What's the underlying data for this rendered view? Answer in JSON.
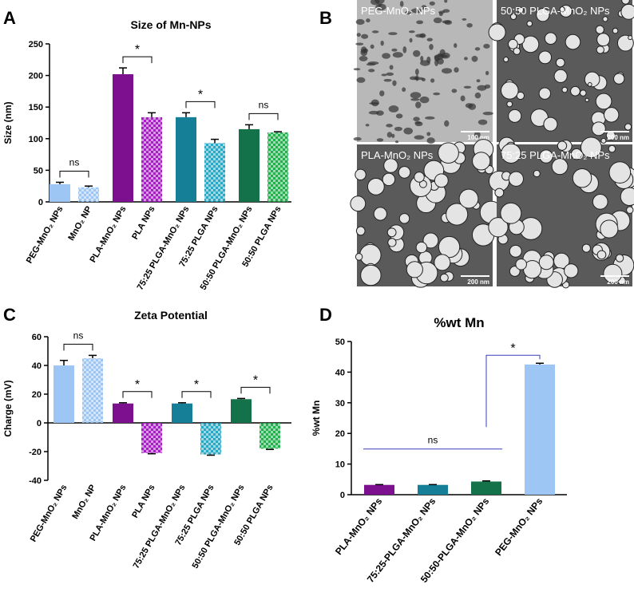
{
  "panel_labels": [
    "A",
    "B",
    "C",
    "D"
  ],
  "micrographs": [
    {
      "label": "PEG-MnO₂ NPs",
      "scale": "100 nm"
    },
    {
      "label": "50:50 PLGA-MnO₂ NPs",
      "scale": "200 nm"
    },
    {
      "label": "PLA-MnO₂ NPs",
      "scale": "200 nm"
    },
    {
      "label": "75:25 PLGA-MnO₂ NPs",
      "scale": "200 nm"
    }
  ],
  "chart_data": [
    {
      "type": "bar",
      "title": "Size of Mn-NPs",
      "ylabel": "Size (nm)",
      "categories": [
        "PEG-MnO₂ NPs",
        "MnO₂ NP",
        "PLA-MnO₂ NPs",
        "PLA NPs",
        "75:25 PLGA-MnO₂ NPs",
        "75:25 PLGA NPs",
        "50:50 PLGA-MnO₂ NPs",
        "50:50 PLGA NPs"
      ],
      "values": [
        28,
        23,
        202,
        134,
        134,
        93,
        115,
        110
      ],
      "errors": [
        3,
        2,
        10,
        7,
        7,
        6,
        7,
        1
      ],
      "colors": [
        "#9ec6f5",
        "#9ec6f5",
        "#7d108f",
        "#a71fc4",
        "#147f96",
        "#28a8c4",
        "#13724a",
        "#23b04f"
      ],
      "patterned": [
        false,
        true,
        false,
        true,
        false,
        true,
        false,
        true
      ],
      "ylim": [
        0,
        250
      ],
      "yticks": [
        0,
        50,
        100,
        150,
        200,
        250
      ],
      "annotations": [
        {
          "text": "ns",
          "between": [
            0,
            1
          ]
        },
        {
          "text": "*",
          "between": [
            2,
            3
          ]
        },
        {
          "text": "*",
          "between": [
            4,
            5
          ]
        },
        {
          "text": "ns",
          "between": [
            6,
            7
          ]
        }
      ]
    },
    {
      "type": "bar",
      "title": "Zeta Potential",
      "ylabel": "Charge (mV)",
      "categories": [
        "PEG-MnO₂ NPs",
        "MnO₂ NP",
        "PLA-MnO₂ NPs",
        "PLA NPs",
        "75:25 PLGA-MnO₂ NPs",
        "75:25 PLGA NPs",
        "50:50 PLGA-MnO₂ NPs",
        "50:50 PLGA NPs"
      ],
      "values": [
        40,
        45,
        13.5,
        -21,
        13.5,
        -22,
        16.5,
        -18
      ],
      "errors": [
        3.5,
        2,
        0.5,
        0.5,
        0.5,
        0.5,
        0.5,
        0.5
      ],
      "colors": [
        "#9ec6f5",
        "#9ec6f5",
        "#7d108f",
        "#a71fc4",
        "#147f96",
        "#28a8c4",
        "#13724a",
        "#23b04f"
      ],
      "patterned": [
        false,
        true,
        false,
        true,
        false,
        true,
        false,
        true
      ],
      "ylim": [
        -40,
        60
      ],
      "yticks": [
        -40,
        -20,
        0,
        20,
        40,
        60
      ],
      "annotations": [
        {
          "text": "ns",
          "between": [
            0,
            1
          ]
        },
        {
          "text": "*",
          "between": [
            2,
            3
          ]
        },
        {
          "text": "*",
          "between": [
            4,
            5
          ]
        },
        {
          "text": "*",
          "between": [
            6,
            7
          ]
        }
      ]
    },
    {
      "type": "bar",
      "title": "%wt Mn",
      "ylabel": "%wt Mn",
      "categories": [
        "PLA-MnO₂ NPs",
        "75:25-PLGA-MnO₂ NPs",
        "50:50-PLGA-MnO₂ NPs",
        "PEG-MnO₂ NPs"
      ],
      "values": [
        3.2,
        3.2,
        4.3,
        42.5
      ],
      "errors": [
        0.1,
        0.1,
        0.2,
        0.4
      ],
      "colors": [
        "#7d108f",
        "#147f96",
        "#13724a",
        "#9ec6f5"
      ],
      "patterned": [
        false,
        false,
        false,
        false
      ],
      "ylim": [
        0,
        50
      ],
      "yticks": [
        0,
        10,
        20,
        30,
        40,
        50
      ],
      "annotations": [
        {
          "text": "ns",
          "between": [
            0,
            2
          ]
        },
        {
          "text": "*",
          "between": [
            2,
            3
          ]
        }
      ]
    }
  ]
}
